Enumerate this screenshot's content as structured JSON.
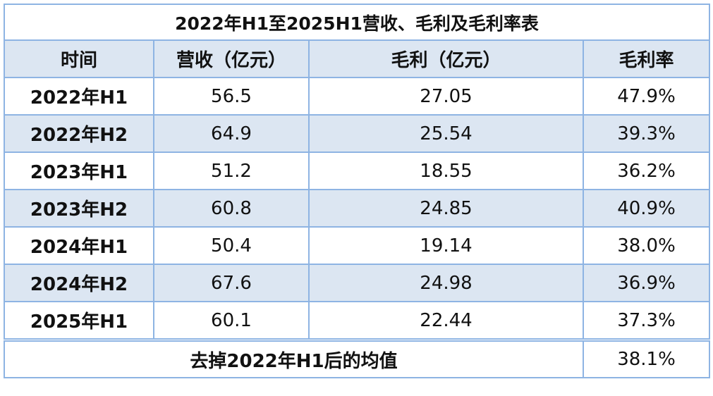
{
  "table": {
    "title": "2022年H1至2025H1营收、毛利及毛利率表",
    "columns": [
      "时间",
      "营收（亿元）",
      "毛利（亿元）",
      "毛利率"
    ],
    "rows": [
      [
        "2022年H1",
        "56.5",
        "27.05",
        "47.9%"
      ],
      [
        "2022年H2",
        "64.9",
        "25.54",
        "39.3%"
      ],
      [
        "2023年H1",
        "51.2",
        "18.55",
        "36.2%"
      ],
      [
        "2023年H2",
        "60.8",
        "24.85",
        "40.9%"
      ],
      [
        "2024年H1",
        "50.4",
        "19.14",
        "38.0%"
      ],
      [
        "2024年H2",
        "67.6",
        "24.98",
        "36.9%"
      ],
      [
        "2025年H1",
        "60.1",
        "22.44",
        "37.3%"
      ]
    ],
    "footer": {
      "label": "去掉2022年H1后的均值",
      "value": "38.1%"
    }
  }
}
